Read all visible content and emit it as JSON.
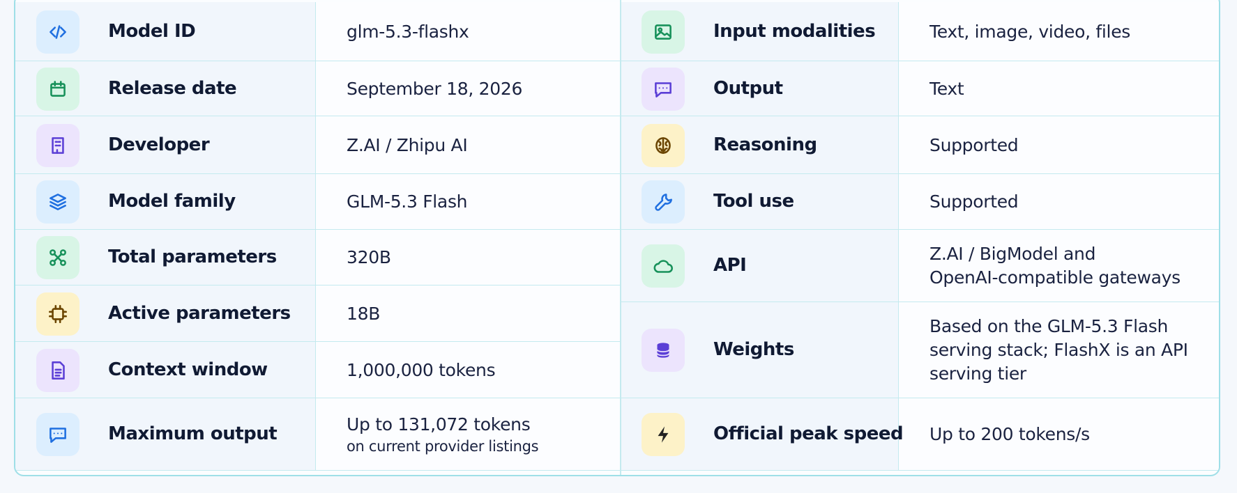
{
  "left": {
    "rows": [
      {
        "label": "Model ID",
        "value_lines": [
          "glm-5.3-flashx"
        ]
      },
      {
        "label": "Release date",
        "value_lines": [
          "September 18, 2026"
        ]
      },
      {
        "label": "Developer",
        "value_lines": [
          "Z.AI / Zhipu AI"
        ]
      },
      {
        "label": "Model family",
        "value_lines": [
          "GLM-5.3 Flash"
        ]
      },
      {
        "label": "Total parameters",
        "value_lines": [
          "320B"
        ]
      },
      {
        "label": "Active parameters",
        "value_lines": [
          "18B"
        ]
      },
      {
        "label": "Context window",
        "value_lines": [
          "1,000,000 tokens"
        ]
      },
      {
        "label": "Maximum output",
        "value_lines": [
          "Up to 131,072 tokens"
        ],
        "note": "on current provider listings"
      }
    ]
  },
  "right": {
    "rows": [
      {
        "label": "Input modalities",
        "value_lines": [
          "Text, image, video, files"
        ]
      },
      {
        "label": "Output",
        "value_lines": [
          "Text"
        ]
      },
      {
        "label": "Reasoning",
        "value_lines": [
          "Supported"
        ]
      },
      {
        "label": "Tool use",
        "value_lines": [
          "Supported"
        ]
      },
      {
        "label": "API",
        "value_lines": [
          "Z.AI / BigModel and",
          "OpenAI-compatible gateways"
        ]
      },
      {
        "label": "Weights",
        "value_lines": [
          "Based on the GLM-5.3 Flash",
          "serving stack; FlashX is an API",
          "serving tier"
        ]
      },
      {
        "label": "Official peak speed",
        "value_lines": [
          "Up to 200 tokens/s"
        ]
      }
    ]
  }
}
